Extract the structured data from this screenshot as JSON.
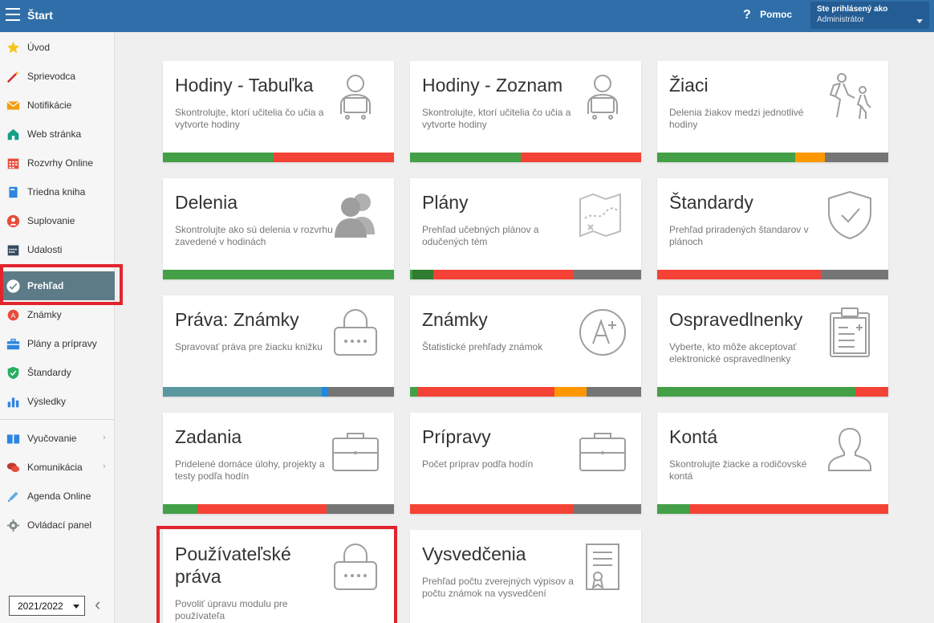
{
  "topbar": {
    "title": "Štart",
    "help_label": "Pomoc",
    "user_caption": "Ste prihlásený ako",
    "user_name": "Administrátor"
  },
  "sidebar": {
    "items": [
      {
        "label": "Úvod",
        "icon": "star-icon"
      },
      {
        "label": "Sprievodca",
        "icon": "magic-wand-icon"
      },
      {
        "label": "Notifikácie",
        "icon": "envelope-icon"
      },
      {
        "label": "Web stránka",
        "icon": "house-icon"
      },
      {
        "label": "Rozvrhy Online",
        "icon": "calendar-grid-icon"
      },
      {
        "label": "Triedna kniha",
        "icon": "book-icon"
      },
      {
        "label": "Suplovanie",
        "icon": "person-swap-icon"
      },
      {
        "label": "Udalosti",
        "icon": "calendar-icon"
      },
      {
        "label": "Prehľad",
        "icon": "checkmark-circle-icon",
        "active": true
      },
      {
        "label": "Známky",
        "icon": "grade-icon"
      },
      {
        "label": "Plány a prípravy",
        "icon": "briefcase-icon"
      },
      {
        "label": "Štandardy",
        "icon": "shield-check-icon"
      },
      {
        "label": "Výsledky",
        "icon": "bar-chart-icon"
      },
      {
        "label": "Vyučovanie",
        "icon": "open-book-icon"
      },
      {
        "label": "Komunikácia",
        "icon": "chat-icon"
      },
      {
        "label": "Agenda Online",
        "icon": "pen-icon"
      },
      {
        "label": "Ovládací panel",
        "icon": "gear-icon"
      }
    ],
    "year_selected": "2021/2022"
  },
  "cards": [
    {
      "title": "Hodiny - Tabuľka",
      "desc": "Skontrolujte, ktorí učitelia čo učia a vytvorte hodiny",
      "icon": "teacher-laptop-icon",
      "bar": [
        [
          0.48,
          "#43a047"
        ],
        [
          0.52,
          "#f44336"
        ]
      ]
    },
    {
      "title": "Hodiny - Zoznam",
      "desc": "Skontrolujte, ktorí učitelia čo učia a vytvorte hodiny",
      "icon": "teacher-laptop-icon",
      "bar": [
        [
          0.48,
          "#43a047"
        ],
        [
          0.52,
          "#f44336"
        ]
      ]
    },
    {
      "title": "Žiaci",
      "desc": "Delenia žiakov medzi jednotlivé hodiny",
      "icon": "walking-kids-icon",
      "bar": [
        [
          0.597,
          "#43a047"
        ],
        [
          0.13,
          "#ff9800"
        ],
        [
          0.273,
          "#757575"
        ]
      ]
    },
    {
      "title": "Delenia",
      "desc": "Skontrolujte ako sú delenia v rozvrhu zavedené v hodinách",
      "icon": "people-group-icon",
      "bar": [
        [
          1.0,
          "#43a047"
        ]
      ]
    },
    {
      "title": "Plány",
      "desc": "Prehľad učebných plánov a odučených tém",
      "icon": "map-icon",
      "bar": [
        [
          0.01,
          "#43a047"
        ],
        [
          0.09,
          "#2e7d32"
        ],
        [
          0.61,
          "#f44336"
        ],
        [
          0.29,
          "#757575"
        ]
      ]
    },
    {
      "title": "Štandardy",
      "desc": "Prehľad priradených štandarov v plánoch",
      "icon": "shield-check-icon",
      "bar": [
        [
          0.71,
          "#f44336"
        ],
        [
          0.29,
          "#757575"
        ]
      ]
    },
    {
      "title": "Práva: Známky",
      "desc": "Spravovať práva pre žiacku knižku",
      "icon": "padlock-icon",
      "bar": [
        [
          0.688,
          "#5a98a0"
        ],
        [
          0.028,
          "#1e88e5"
        ],
        [
          0.284,
          "#757575"
        ]
      ]
    },
    {
      "title": "Známky",
      "desc": "Štatistické prehľady známok",
      "icon": "grade-a-plus-icon",
      "bar": [
        [
          0.035,
          "#43a047"
        ],
        [
          0.59,
          "#f44336"
        ],
        [
          0.14,
          "#ff9800"
        ],
        [
          0.235,
          "#757575"
        ]
      ]
    },
    {
      "title": "Ospravedlnenky",
      "desc": "Vyberte, kto môže akceptovať elektronické ospravedlnenky",
      "icon": "clipboard-icon",
      "bar": [
        [
          0.858,
          "#43a047"
        ],
        [
          0.142,
          "#f44336"
        ]
      ]
    },
    {
      "title": "Zadania",
      "desc": "Pridelené domáce úlohy, projekty a testy podľa hodín",
      "icon": "briefcase-icon",
      "bar": [
        [
          0.15,
          "#43a047"
        ],
        [
          0.56,
          "#f44336"
        ],
        [
          0.29,
          "#757575"
        ]
      ]
    },
    {
      "title": "Prípravy",
      "desc": "Počet príprav podľa hodín",
      "icon": "briefcase-icon",
      "bar": [
        [
          0.71,
          "#f44336"
        ],
        [
          0.29,
          "#757575"
        ]
      ]
    },
    {
      "title": "Kontá",
      "desc": "Skontrolujte žiacke a rodičovské kontá",
      "icon": "user-account-icon",
      "bar": [
        [
          0.142,
          "#43a047"
        ],
        [
          0.858,
          "#f44336"
        ]
      ]
    },
    {
      "title": "Používateľské práva",
      "desc": "Povoliť úpravu modulu pre používateľa",
      "icon": "padlock-icon",
      "bar": []
    },
    {
      "title": "Vysvedčenia",
      "desc": "Prehľad počtu zverejných výpisov a počtu známok na vysvedčení",
      "icon": "certificate-icon",
      "bar": []
    }
  ]
}
